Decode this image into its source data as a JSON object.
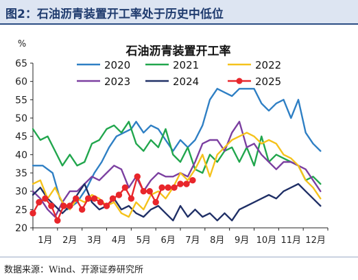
{
  "figure": {
    "title": "图2：石油沥青装置开工率处于历史中低位",
    "source": "数据来源：Wind、开源证券研究所"
  },
  "chart_data": {
    "type": "line",
    "title": "石油沥青装置开工率",
    "ylabel": "%",
    "xlabel": "",
    "ylim": [
      20,
      65
    ],
    "yticks": [
      20,
      25,
      30,
      35,
      40,
      45,
      50,
      55,
      60,
      65
    ],
    "xlim": [
      1,
      13
    ],
    "x_tick_labels": [
      "1月",
      "2月",
      "3月",
      "4月",
      "5月",
      "6月",
      "7月",
      "8月",
      "9月",
      "10月",
      "11月",
      "12月"
    ],
    "grid": false,
    "legend_position": "top",
    "series": [
      {
        "name": "2020",
        "color": "#2e7fc4",
        "x": [
          1.0,
          1.4,
          1.8,
          2.1,
          2.4,
          2.8,
          3.2,
          3.5,
          3.8,
          4.1,
          4.4,
          4.7,
          5.0,
          5.2,
          5.5,
          5.8,
          6.1,
          6.4,
          6.7,
          7.0,
          7.3,
          7.6,
          7.9,
          8.2,
          8.5,
          8.8,
          9.1,
          9.4,
          9.7,
          10.0,
          10.3,
          10.6,
          10.9,
          11.2,
          11.5,
          11.8,
          12.1,
          12.4,
          12.7
        ],
        "y": [
          37,
          37,
          35,
          28,
          25,
          27,
          31,
          35,
          38,
          42,
          45,
          46,
          47,
          49,
          46,
          48,
          47,
          44,
          41,
          44,
          42,
          44,
          48,
          55,
          58,
          57,
          56,
          58,
          58,
          58,
          54,
          52,
          54,
          55,
          50,
          55,
          46,
          43,
          41
        ]
      },
      {
        "name": "2021",
        "color": "#21a64d",
        "x": [
          1.0,
          1.3,
          1.6,
          1.9,
          2.2,
          2.5,
          2.8,
          3.1,
          3.4,
          3.7,
          4.0,
          4.3,
          4.6,
          4.9,
          5.2,
          5.5,
          5.8,
          6.1,
          6.4,
          6.7,
          7.0,
          7.3,
          7.6,
          7.9,
          8.2,
          8.5,
          8.8,
          9.1,
          9.4,
          9.7,
          10.0,
          10.3,
          10.6,
          10.9,
          11.2,
          11.5,
          11.8,
          12.1,
          12.4,
          12.7
        ],
        "y": [
          47,
          44,
          45,
          41,
          37,
          40,
          37,
          38,
          43,
          44,
          47,
          48,
          46,
          49,
          43,
          41,
          44,
          42,
          47,
          40,
          38,
          42,
          36,
          35,
          40,
          38,
          41,
          42,
          38,
          42,
          37,
          45,
          38,
          40,
          39,
          38,
          37,
          33,
          34,
          32
        ]
      },
      {
        "name": "2022",
        "color": "#f5c21b",
        "x": [
          1.0,
          1.3,
          1.6,
          1.9,
          2.2,
          2.5,
          2.8,
          3.1,
          3.4,
          3.7,
          4.0,
          4.3,
          4.6,
          4.9,
          5.2,
          5.5,
          5.8,
          6.1,
          6.4,
          6.7,
          7.0,
          7.3,
          7.6,
          7.9,
          8.2,
          8.5,
          8.8,
          9.1,
          9.4,
          9.7,
          10.0,
          10.3,
          10.6,
          10.9,
          11.2,
          11.5,
          11.8,
          12.1,
          12.4,
          12.7
        ],
        "y": [
          32,
          33,
          28,
          31,
          27,
          25,
          28,
          27,
          29,
          28,
          26,
          27,
          24,
          23,
          27,
          25,
          29,
          30,
          28,
          31,
          35,
          33,
          36,
          40,
          34,
          40,
          42,
          44,
          45,
          46,
          45,
          43,
          44,
          43,
          40,
          39,
          37,
          33,
          31,
          28
        ]
      },
      {
        "name": "2023",
        "color": "#7b3fa0",
        "x": [
          1.0,
          1.3,
          1.6,
          1.9,
          2.2,
          2.5,
          2.8,
          3.1,
          3.4,
          3.7,
          4.0,
          4.3,
          4.6,
          4.9,
          5.2,
          5.5,
          5.8,
          6.1,
          6.4,
          6.7,
          7.0,
          7.3,
          7.6,
          7.9,
          8.2,
          8.5,
          8.8,
          9.1,
          9.4,
          9.7,
          10.0,
          10.3,
          10.6,
          10.9,
          11.2,
          11.5,
          11.8,
          12.1,
          12.4,
          12.7
        ],
        "y": [
          30,
          28,
          25,
          23,
          27,
          30,
          30,
          32,
          34,
          33,
          35,
          37,
          36,
          31,
          34,
          30,
          33,
          35,
          34,
          34,
          35,
          34,
          38,
          43,
          44,
          44,
          41,
          46,
          49,
          42,
          43,
          40,
          38,
          36,
          38,
          38,
          37,
          36,
          33,
          30
        ]
      },
      {
        "name": "2024",
        "color": "#1f2f66",
        "x": [
          1.0,
          1.3,
          1.6,
          1.9,
          2.2,
          2.5,
          2.8,
          3.1,
          3.4,
          3.7,
          4.0,
          4.3,
          4.6,
          4.9,
          5.2,
          5.5,
          5.8,
          6.1,
          6.4,
          6.7,
          7.0,
          7.3,
          7.6,
          7.9,
          8.2,
          8.5,
          8.8,
          9.1,
          9.4,
          9.7,
          10.0,
          10.3,
          10.6,
          10.9,
          11.2,
          11.5,
          11.8,
          12.1,
          12.4,
          12.7
        ],
        "y": [
          29,
          31,
          28,
          26,
          24,
          26,
          29,
          32,
          27,
          25,
          26,
          28,
          25,
          26,
          24,
          23,
          25,
          26,
          24,
          22,
          26,
          23,
          25,
          23,
          24,
          22,
          24,
          22,
          25,
          26,
          27,
          28,
          29,
          28,
          30,
          31,
          32,
          30,
          28,
          26
        ]
      },
      {
        "name": "2025",
        "color": "#e8262b",
        "marker": "circle",
        "x": [
          1.0,
          1.25,
          1.5,
          1.75,
          2.0,
          2.25,
          2.5,
          2.75,
          3.0,
          3.25,
          3.5,
          3.75,
          4.0,
          4.25,
          4.5,
          4.75,
          5.0,
          5.25,
          5.5,
          5.75,
          6.0,
          6.25,
          6.5,
          6.75,
          7.0,
          7.25,
          7.5
        ],
        "y": [
          24,
          27,
          28,
          26,
          22,
          26,
          26,
          28,
          25,
          28,
          28,
          27,
          26,
          28,
          29,
          31,
          28,
          34,
          30,
          30,
          27,
          31,
          31,
          31,
          32,
          32,
          33
        ]
      }
    ]
  }
}
